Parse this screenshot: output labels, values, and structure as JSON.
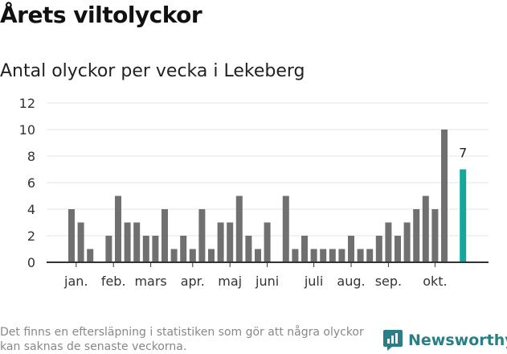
{
  "title": "Årets viltolyckor",
  "subtitle": "Antal olyckor per vecka i Lekeberg",
  "footnote": "Det finns en eftersläpning i statistiken som gör att några olyckor kan saknas de senaste veckorna.",
  "brand": "Newsworthy",
  "colors": {
    "bar": "#707070",
    "highlight": "#17a69b",
    "grid": "#e4e4e4",
    "axis": "#333333"
  },
  "chart_data": {
    "type": "bar",
    "title": "Antal olyckor per vecka i Lekeberg",
    "xlabel": "",
    "ylabel": "",
    "ylim": [
      0,
      12
    ],
    "y_ticks": [
      0,
      2,
      4,
      6,
      8,
      10,
      12
    ],
    "grid": true,
    "weeks": [
      1,
      2,
      3,
      4,
      5,
      6,
      7,
      8,
      9,
      10,
      11,
      12,
      13,
      14,
      15,
      16,
      17,
      18,
      19,
      20,
      21,
      22,
      23,
      24,
      25,
      26,
      27,
      28,
      29,
      30,
      31,
      32,
      33,
      34,
      35,
      36,
      37,
      38,
      39,
      40,
      41,
      42,
      43
    ],
    "values": [
      4,
      3,
      1,
      0,
      2,
      5,
      3,
      3,
      2,
      2,
      4,
      1,
      2,
      1,
      4,
      1,
      3,
      3,
      5,
      2,
      1,
      3,
      0,
      5,
      1,
      2,
      1,
      1,
      1,
      1,
      2,
      1,
      1,
      2,
      3,
      2,
      3,
      4,
      5,
      4,
      10,
      0,
      7
    ],
    "highlight_week": 43,
    "highlight_label": "7",
    "month_labels": [
      {
        "label": "jan.",
        "week": 1.5
      },
      {
        "label": "feb.",
        "week": 5.5
      },
      {
        "label": "mars",
        "week": 9.5
      },
      {
        "label": "apr.",
        "week": 14
      },
      {
        "label": "maj",
        "week": 18
      },
      {
        "label": "juni",
        "week": 22
      },
      {
        "label": "juli",
        "week": 27
      },
      {
        "label": "aug.",
        "week": 31
      },
      {
        "label": "sep.",
        "week": 35
      },
      {
        "label": "okt.",
        "week": 40
      }
    ]
  }
}
